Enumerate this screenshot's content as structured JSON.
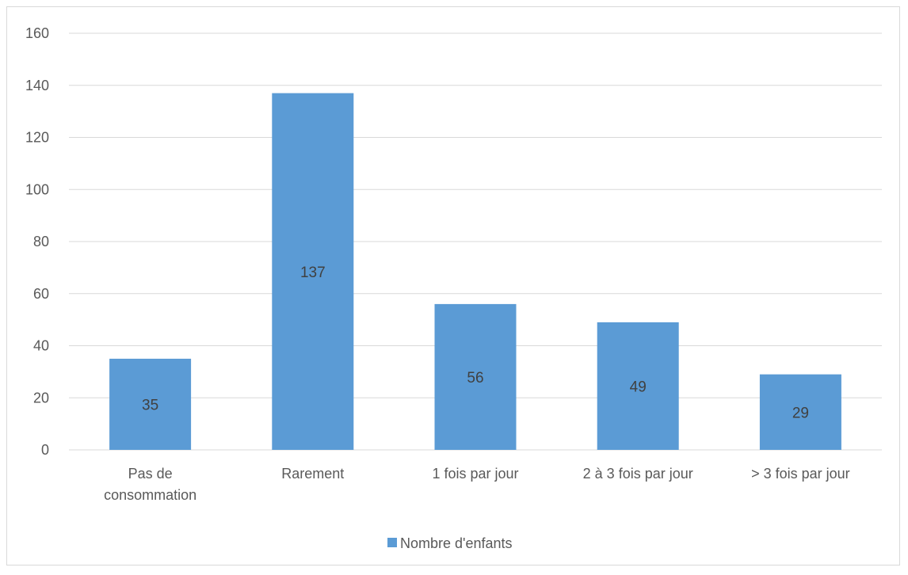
{
  "chart_data": {
    "type": "bar",
    "categories": [
      [
        "Pas de",
        "consommation"
      ],
      [
        "Rarement"
      ],
      [
        "1 fois par jour"
      ],
      [
        "2 à 3 fois par jour"
      ],
      [
        "> 3 fois par jour"
      ]
    ],
    "series": [
      {
        "name": "Nombre d'enfants",
        "values": [
          35,
          137,
          56,
          49,
          29
        ],
        "color": "#5b9bd5"
      }
    ],
    "ylim": [
      0,
      160
    ],
    "yticks": [
      0,
      20,
      40,
      60,
      80,
      100,
      120,
      140,
      160
    ],
    "grid": true,
    "data_labels": true,
    "legend_position": "bottom",
    "title": "",
    "xlabel": "",
    "ylabel": ""
  }
}
